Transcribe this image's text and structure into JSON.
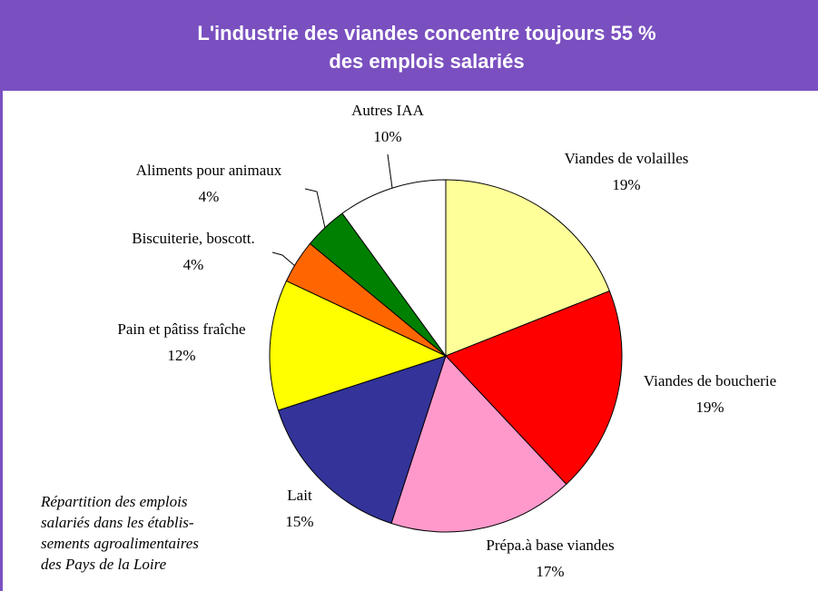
{
  "chart_data": {
    "type": "pie",
    "title": [
      "L'industrie des viandes concentre toujours 55 %",
      "des emplois salariés"
    ],
    "categories": [
      "Viandes de volailles",
      "Viandes de boucherie",
      "Prépa.à base viandes",
      "Lait",
      "Pain et pâtiss fraîche",
      "Biscuiterie, boscott.",
      "Aliments pour animaux",
      "Autres IAA"
    ],
    "values": [
      19,
      19,
      17,
      15,
      12,
      4,
      4,
      10
    ],
    "value_labels": [
      "19%",
      "19%",
      "17%",
      "15%",
      "12%",
      "4%",
      "4%",
      "10%"
    ],
    "colors": [
      "#ffff99",
      "#ff0000",
      "#ff99cc",
      "#333399",
      "#ffff00",
      "#ff6600",
      "#008000",
      "#ffffff"
    ],
    "caption": [
      "Répartition des emplois",
      "salariés dans les établis-",
      "sements agroalimentaires",
      "des Pays de la Loire"
    ]
  }
}
